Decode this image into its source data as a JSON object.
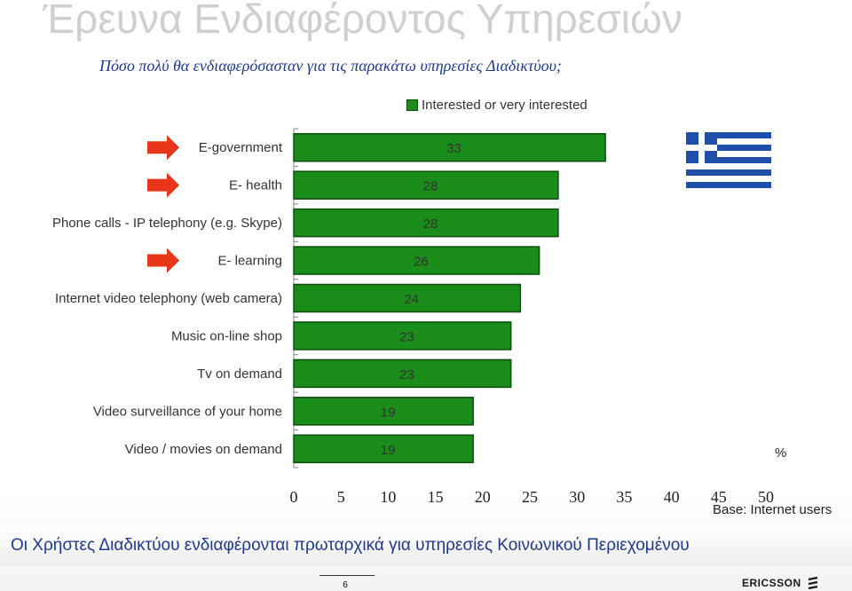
{
  "header": {
    "title": "Έρευνα Ενδιαφέροντος Υπηρεσιών",
    "subtitle": "Πόσο πολύ θα ενδιαφερόσασταν για τις παρακάτω υπηρεσίες Διαδικτύου;"
  },
  "chart_data": {
    "type": "bar",
    "orientation": "horizontal",
    "categories": [
      "E-government",
      "E- health",
      "Phone calls - IP telephony (e.g. Skype)",
      "E- learning",
      "Internet video telephony (web camera)",
      "Music on-line shop",
      "Tv on demand",
      "Video surveillance of your home",
      "Video / movies on demand"
    ],
    "highlighted": [
      true,
      true,
      false,
      true,
      false,
      false,
      false,
      false,
      false
    ],
    "series": [
      {
        "name": "Interested or very interested",
        "values": [
          33,
          28,
          28,
          26,
          24,
          23,
          23,
          19,
          19
        ]
      }
    ],
    "xlim": [
      0,
      50
    ],
    "xticks": [
      "0",
      "5",
      "10",
      "15",
      "20",
      "25",
      "30",
      "35",
      "40",
      "45",
      "50"
    ],
    "unit_label": "%",
    "bar_color": "#1a8c1a",
    "arrow_color": "#e8361a"
  },
  "notes": {
    "base": "Base: Internet users"
  },
  "footer": {
    "summary": "Οι Χρήστες Διαδικτύου ενδιαφέρονται πρωταρχικά για υπηρεσίες Κοινωνικού Περιεχομένου",
    "page_number": "6",
    "brand": "ERICSSON"
  },
  "flag": {
    "blue": "#1f4fa8",
    "white": "#ffffff"
  }
}
